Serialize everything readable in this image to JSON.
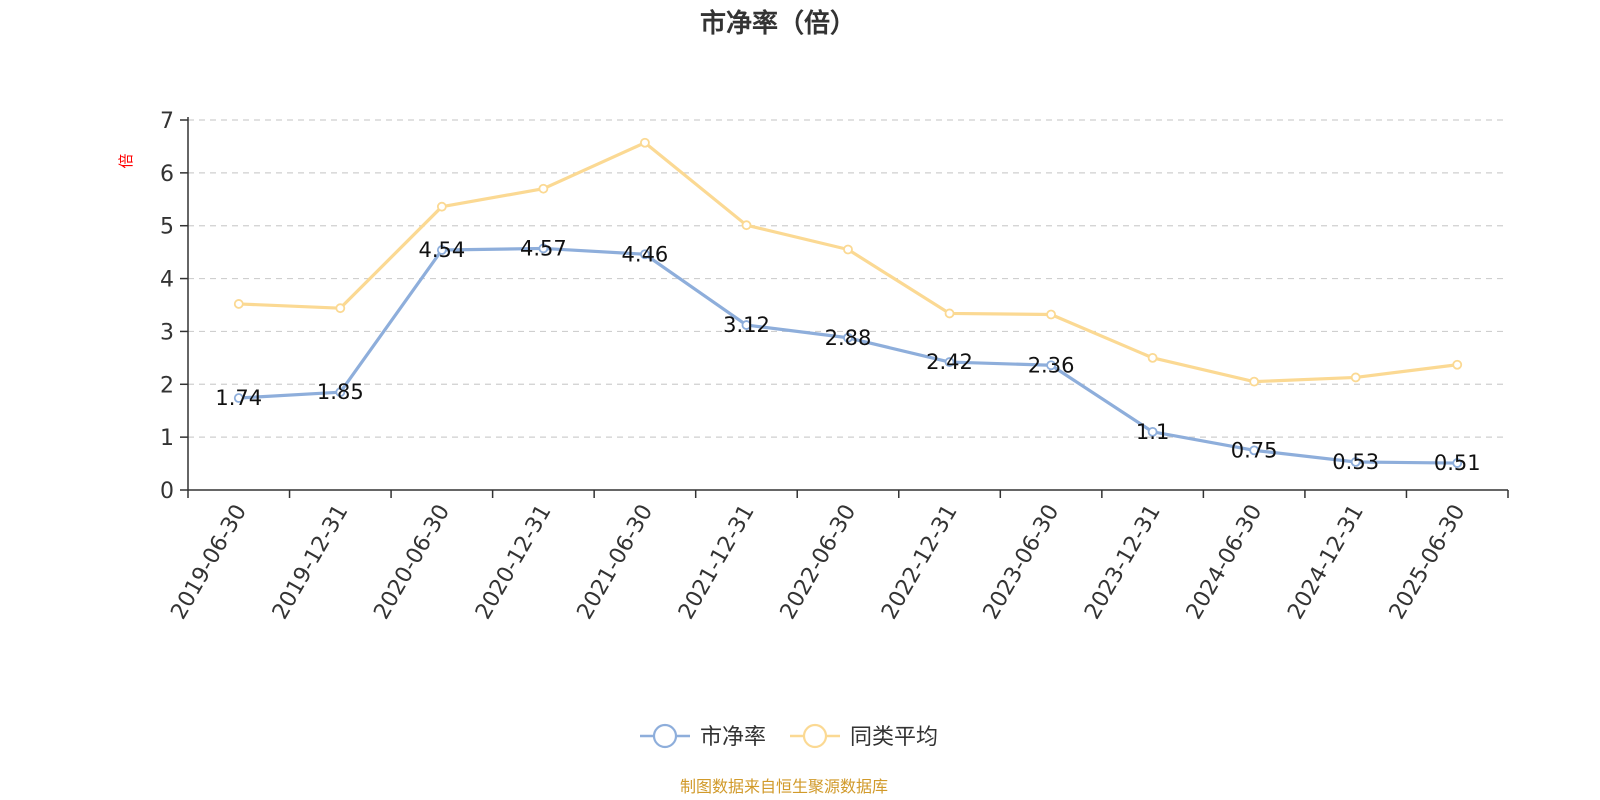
{
  "chart_data": {
    "type": "line",
    "title": "市净率（倍）",
    "ylabel": "倍",
    "xlabel": "",
    "ylim": [
      0,
      7
    ],
    "yticks": [
      0,
      1,
      2,
      3,
      4,
      5,
      6,
      7
    ],
    "grid": true,
    "legend_position": "bottom-center",
    "categories": [
      "2019-06-30",
      "2019-12-31",
      "2020-06-30",
      "2020-12-31",
      "2021-06-30",
      "2021-12-31",
      "2022-06-30",
      "2022-12-31",
      "2023-06-30",
      "2023-12-31",
      "2024-06-30",
      "2024-12-31",
      "2025-06-30"
    ],
    "series": [
      {
        "name": "市净率",
        "color": "#8eaedb",
        "show_labels": true,
        "labels": [
          "1.74",
          "1.85",
          "4.54",
          "4.57",
          "4.46",
          "3.12",
          "2.88",
          "2.42",
          "2.36",
          "1.1",
          "0.75",
          "0.53",
          "0.51"
        ],
        "values": [
          1.74,
          1.85,
          4.54,
          4.57,
          4.46,
          3.12,
          2.88,
          2.42,
          2.36,
          1.1,
          0.75,
          0.53,
          0.51
        ]
      },
      {
        "name": "同类平均",
        "color": "#fbd993",
        "show_labels": false,
        "values": [
          3.52,
          3.44,
          5.36,
          5.7,
          6.57,
          5.01,
          4.55,
          3.34,
          3.32,
          2.5,
          2.05,
          2.13,
          2.37
        ]
      }
    ],
    "source": "制图数据来自恒生聚源数据库"
  }
}
